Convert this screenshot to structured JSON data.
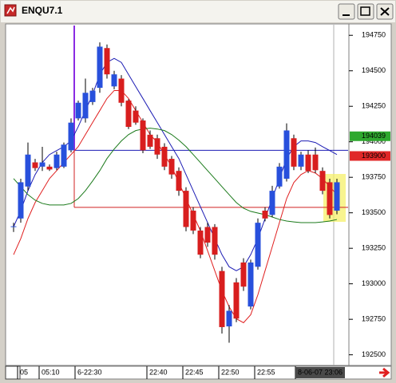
{
  "chart_data": {
    "type": "candlestick",
    "title": "ENQU7.1",
    "categories": [
      null,
      "05",
      null,
      null,
      "05:10",
      null,
      null,
      null,
      null,
      "6-22:30",
      null,
      null,
      null,
      null,
      null,
      null,
      null,
      null,
      null,
      "22:40",
      null,
      null,
      null,
      null,
      "22:45",
      null,
      null,
      null,
      null,
      "22:50",
      null,
      null,
      null,
      null,
      "22:55",
      null,
      null,
      null,
      null,
      null,
      null,
      null,
      null,
      null,
      null,
      "8-06-07 23:06"
    ],
    "open": [
      193400,
      193460,
      193685,
      193855,
      193825,
      193825,
      193815,
      193825,
      193940,
      194165,
      194165,
      194280,
      194380,
      194660,
      194390,
      194445,
      194290,
      194220,
      194150,
      194050,
      194025,
      193965,
      193880,
      193795,
      193655,
      193515,
      193375,
      193400,
      193400,
      193090,
      192700,
      193010,
      193150,
      192840,
      193120,
      193515,
      193485,
      193685,
      193740,
      194025,
      193825,
      193910,
      193910,
      193795,
      193715,
      193515
    ],
    "high": [
      193430,
      193740,
      193995,
      193880,
      193965,
      193840,
      193930,
      193995,
      194165,
      194290,
      194445,
      194380,
      194700,
      194685,
      194500,
      194470,
      194300,
      194250,
      194165,
      194080,
      194050,
      193990,
      193900,
      193820,
      193680,
      193540,
      193400,
      193430,
      193420,
      193120,
      192850,
      193040,
      193180,
      193170,
      193460,
      193540,
      193690,
      193850,
      194130,
      194050,
      193930,
      193940,
      193960,
      193820,
      193740,
      193740
    ],
    "low": [
      193365,
      193430,
      193655,
      193795,
      193795,
      193795,
      193800,
      193815,
      193925,
      194150,
      194135,
      194260,
      194345,
      194445,
      194370,
      194250,
      194090,
      194120,
      193920,
      193950,
      193880,
      193800,
      193740,
      193620,
      193370,
      193350,
      193180,
      193260,
      193170,
      192650,
      192585,
      192730,
      192950,
      192820,
      193100,
      193440,
      193470,
      193670,
      193720,
      193800,
      193800,
      193780,
      193780,
      193630,
      193460,
      193490
    ],
    "close": [
      193405,
      193715,
      193910,
      193815,
      193855,
      193805,
      193910,
      193980,
      194135,
      194275,
      194345,
      194360,
      194670,
      194475,
      194475,
      194275,
      194105,
      194135,
      193940,
      193965,
      193910,
      193825,
      193770,
      193655,
      193400,
      193375,
      193205,
      193290,
      193205,
      192695,
      192810,
      192755,
      192980,
      193150,
      193430,
      193460,
      193655,
      193825,
      194080,
      193825,
      193910,
      193795,
      193800,
      193655,
      193485,
      193715
    ],
    "up_color": "#2850dc",
    "down_color": "#d81e1e",
    "overlays": [
      {
        "color": "#1c1cb4",
        "values": [
          193402,
          193515,
          193656,
          193769,
          193854,
          193910,
          193938,
          193966,
          194006,
          194107,
          194220,
          194333,
          194474,
          194559,
          194587,
          194559,
          194474,
          194389,
          194305,
          194220,
          194136,
          194051,
          193966,
          193882,
          193769,
          193656,
          193543,
          193431,
          193318,
          193205,
          193120,
          193092,
          193120,
          193205,
          193318,
          193459,
          193600,
          193741,
          193882,
          193966,
          194006,
          194006,
          193995,
          193966,
          193938,
          193910
        ]
      },
      {
        "color": "#e02020",
        "values": [
          193205,
          193318,
          193459,
          193572,
          193656,
          193741,
          193797,
          193854,
          193910,
          193966,
          194051,
          194136,
          194220,
          194305,
          194361,
          194361,
          194305,
          194220,
          194136,
          194051,
          193995,
          193910,
          193825,
          193713,
          193600,
          193487,
          193374,
          193233,
          193092,
          192951,
          192838,
          192754,
          192726,
          192782,
          192923,
          193092,
          193261,
          193431,
          193600,
          193713,
          193769,
          193797,
          193780,
          193741,
          193684,
          193628
        ]
      },
      {
        "color": "#1b7a1b",
        "values": [
          193741,
          193684,
          193628,
          193589,
          193566,
          193555,
          193555,
          193555,
          193566,
          193600,
          193656,
          193724,
          193797,
          193882,
          193949,
          194006,
          194051,
          194079,
          194090,
          194096,
          194090,
          194079,
          194051,
          194012,
          193966,
          193910,
          193854,
          193797,
          193741,
          193684,
          193628,
          193572,
          193532,
          193510,
          193498,
          193487,
          193470,
          193453,
          193442,
          193436,
          193431,
          193431,
          193431,
          193436,
          193442,
          193453
        ]
      }
    ],
    "levels": [
      {
        "value": 193940,
        "color": "#1c1cb4"
      },
      {
        "value": 193538,
        "color": "#d02020"
      }
    ],
    "price_markers": [
      {
        "value": 194039,
        "color": "#2ea82e"
      },
      {
        "value": 193900,
        "color": "#e02828"
      }
    ],
    "ylim": [
      192425,
      194830
    ],
    "yticks": [
      192500,
      192750,
      193000,
      193250,
      193500,
      193750,
      194000,
      194250,
      194500,
      194750
    ]
  }
}
